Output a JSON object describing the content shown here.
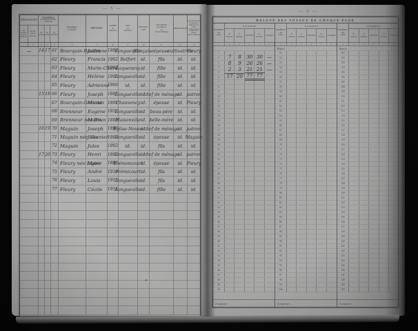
{
  "scan": {
    "left_page_number": "— 5 —",
    "right_page_number": "— 6 —",
    "stray_mark": "4"
  },
  "left_table": {
    "header": {
      "designation": "DÉSIGNATION",
      "designation_sub_a": "des\nquartiers,\nsections,\nhameaux",
      "designation_sub_b": "des rues,\nplaces,\nquais, etc.",
      "numeros": "NUMÉROS",
      "numeros_note": "par maisons, ménages\net individus",
      "num_maisons": "des\nmaisons",
      "num_menages": "des\nménages",
      "num_individus": "des\nindividus",
      "noms": "NOMS",
      "noms_sub": "de famille",
      "prenoms": "PRÉNOMS",
      "annee": "ANNÉE\nde\nnaissance",
      "lieu": "LIEU\nde\nnaissance",
      "nationalite": "NATIONA-\nLITÉ",
      "situation": "SITUATION\npar rapport\nau\nchef du ménage",
      "profession": "PROFESSION",
      "patron": "Pour les ouvriers\net employés :\nindication du patron\n(nom et raison\nsociale de la maison\nqui les emploie)",
      "col_numbers": [
        "1",
        "2",
        "3",
        "4",
        "5",
        "6",
        "7",
        "8",
        "9",
        "10",
        "11",
        "12",
        "13"
      ]
    },
    "rows": [
      {
        "d": "—",
        "m": "14",
        "g": "17",
        "i": "61",
        "nom": "Bourquin-Baudin",
        "pre": "Julienne",
        "an": "1888",
        "lieu": "Longueville",
        "nat": "française",
        "sit": "épouse",
        "prof": "cultivatrice",
        "pat": "Fleury"
      },
      {
        "d": "",
        "m": "",
        "g": "",
        "i": "62",
        "nom": "Fleury",
        "pre": "Francis",
        "an": "1902",
        "lieu": "Belfort",
        "nat": "id.",
        "sit": "fils",
        "prof": "id.",
        "pat": "id."
      },
      {
        "d": "",
        "m": "",
        "g": "",
        "i": "63",
        "nom": "Fleury",
        "pre": "Marie-Claire",
        "an": "1903",
        "lieu": "Laquenexy",
        "nat": "id.",
        "sit": "fille",
        "prof": "id.",
        "pat": "id."
      },
      {
        "d": "",
        "m": "",
        "g": "",
        "i": "64",
        "nom": "Fleury",
        "pre": "Hélène",
        "an": "1905",
        "lieu": "Longueville",
        "nat": "id.",
        "sit": "fille",
        "prof": "id.",
        "pat": "id."
      },
      {
        "d": "",
        "m": "",
        "g": "",
        "i": "65",
        "nom": "Fleury",
        "pre": "Adrienne",
        "an": "1906",
        "lieu": "id.",
        "nat": "id.",
        "sit": "fille",
        "prof": "id.",
        "pat": "id."
      },
      {
        "d": "",
        "m": "15",
        "g": "18",
        "i": "66",
        "nom": "Fleury",
        "pre": "Joseph",
        "an": "1885",
        "lieu": "Longueville",
        "nat": "id.",
        "sit": "chef de ménage",
        "prof": "id.",
        "pat": "patron"
      },
      {
        "d": "",
        "m": "",
        "g": "",
        "i": "67",
        "nom": "Bourquin-Germain",
        "pre": "Maria",
        "an": "1891",
        "lieu": "Chauvency",
        "nat": "id.",
        "sit": "épouse",
        "prof": "id.",
        "pat": "Fleury"
      },
      {
        "d": "",
        "m": "",
        "g": "",
        "i": "68",
        "nom": "Brenneur",
        "pre": "Eugène",
        "an": "1856",
        "lieu": "Longueville",
        "nat": "id.",
        "sit": "beau-père",
        "prof": "id.",
        "pat": "id."
      },
      {
        "d": "",
        "m": "",
        "g": "",
        "i": "69",
        "nom": "Brenneur née Brun",
        "pre": "Marie",
        "an": "1860",
        "lieu": "Maisonville",
        "nat": "id.",
        "sit": "belle-mère",
        "prof": "id.",
        "pat": "id."
      },
      {
        "d": "",
        "m": "16",
        "g": "19",
        "i": "70",
        "nom": "Maguin",
        "pre": "Joseph",
        "an": "1896",
        "lieu": "Église-Neuve",
        "nat": "id.",
        "sit": "chef de ménage",
        "prof": "id.",
        "pat": "patron"
      },
      {
        "d": "",
        "m": "",
        "g": "",
        "i": "71",
        "nom": "Maguin née Saunier",
        "pre": "Julie",
        "an": "1869",
        "lieu": "Longueville",
        "nat": "id.",
        "sit": "épouse",
        "prof": "id.",
        "pat": "Maguin"
      },
      {
        "d": "",
        "m": "",
        "g": "",
        "i": "72",
        "nom": "Maguin",
        "pre": "Jules",
        "an": "1902",
        "lieu": "id.",
        "nat": "id.",
        "sit": "fils",
        "prof": "id.",
        "pat": "id."
      },
      {
        "d": "",
        "m": "17",
        "g": "20",
        "i": "73",
        "nom": "Fleury",
        "pre": "Henri",
        "an": "1883",
        "lieu": "Longueville",
        "nat": "id.",
        "sit": "chef de ménage",
        "prof": "id.",
        "pat": "patron"
      },
      {
        "d": "",
        "m": "",
        "g": "",
        "i": "74",
        "nom": "Fleury née Ligier",
        "pre": "Marie",
        "an": "1885",
        "lieu": "Brémoncourt",
        "nat": "id.",
        "sit": "épouse",
        "prof": "id.",
        "pat": "Fleury"
      },
      {
        "d": "",
        "m": "",
        "g": "",
        "i": "75",
        "nom": "Fleury",
        "pre": "André",
        "an": "1910",
        "lieu": "Frémicourt",
        "nat": "id.",
        "sit": "fils",
        "prof": "id.",
        "pat": "id."
      },
      {
        "d": "",
        "m": "",
        "g": "",
        "i": "76",
        "nom": "Fleury",
        "pre": "Louis",
        "an": "1913",
        "lieu": "Longueville",
        "nat": "id.",
        "sit": "fils",
        "prof": "id.",
        "pat": "id."
      },
      {
        "d": "",
        "m": "",
        "g": "",
        "i": "77",
        "nom": "Fleury",
        "pre": "Cécile",
        "an": "1914",
        "lieu": "Longueville",
        "nat": "id.",
        "sit": "fille",
        "prof": "id.",
        "pat": "id."
      }
    ],
    "empty_row_count": 14
  },
  "right_table": {
    "title": "RELEVÉ DES TOTAUX DE CHAQUE PAGE",
    "header": {
      "numeros": "NUMÉROS\ndes\npages",
      "nombre": "NOMBRE",
      "subcols": [
        "de\nmaisons",
        "de\nménages",
        "d'individus",
        "de\nFrançais",
        "d'étrangers"
      ],
      "col_numbers": [
        "1",
        "2",
        "3",
        "4",
        "5",
        "6"
      ]
    },
    "report_label": "Report . . .",
    "a_reporter_label": "A reporter . . .",
    "entries": [
      {
        "values": [
          "7",
          "8",
          "30",
          "30",
          "—"
        ]
      },
      {
        "values": [
          "8",
          "9",
          "26",
          "26",
          "—"
        ]
      },
      {
        "values": [
          "2",
          "3",
          "21",
          "21",
          "—"
        ]
      }
    ],
    "totals": [
      "17",
      "20",
      "77",
      "77",
      ""
    ],
    "groups": [
      {
        "pages": [
          1,
          2,
          3,
          4,
          5,
          6,
          7,
          8,
          9,
          10,
          11,
          12,
          13,
          14,
          15,
          16,
          17,
          18,
          19,
          20,
          21,
          22,
          23,
          24,
          25,
          26,
          27,
          28,
          29,
          30,
          31,
          32,
          33,
          34,
          35,
          36,
          37,
          38,
          39,
          40,
          41,
          42,
          43,
          44,
          45,
          46,
          47,
          48,
          49,
          50
        ]
      },
      {
        "pages": [
          51,
          52,
          53,
          54,
          55,
          56,
          57,
          58,
          59,
          60,
          61,
          62,
          63,
          64,
          65,
          66,
          67,
          68,
          69,
          70,
          71,
          72,
          73,
          74,
          75,
          76,
          77,
          78,
          79,
          80,
          81,
          82,
          83,
          84,
          85,
          86,
          87,
          88,
          89,
          90,
          91,
          92,
          93,
          94,
          95,
          96,
          97,
          98,
          99,
          100
        ]
      },
      {
        "pages": [
          101,
          102,
          103,
          104,
          105,
          106,
          107,
          108,
          109,
          110,
          111,
          112,
          113,
          114,
          115,
          116,
          117,
          118,
          119,
          120,
          121,
          122,
          123,
          124,
          125,
          126,
          127,
          128,
          129,
          130,
          131,
          132,
          133,
          134,
          135,
          136,
          137,
          138,
          139,
          140,
          141,
          142,
          143,
          144,
          145,
          146,
          147,
          148,
          149,
          150
        ]
      }
    ]
  }
}
